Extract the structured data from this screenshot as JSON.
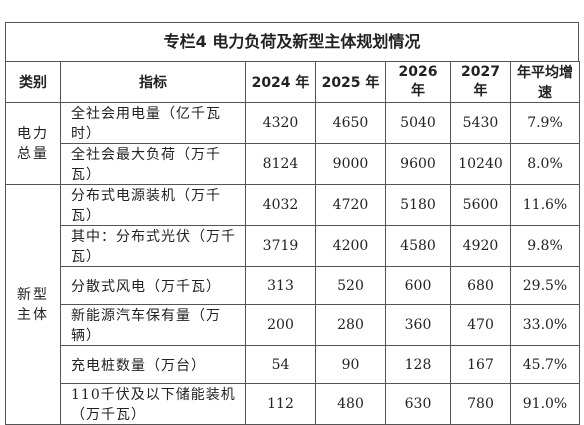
{
  "title": "专栏4  电力负荷及新型主体规划情况",
  "table": {
    "header": [
      "类别",
      "指标",
      "2024 年",
      "2025 年",
      "2026 年",
      "2027 年",
      "年平均增速"
    ],
    "groups": [
      {
        "category": "电力总量",
        "rows": [
          [
            "全社会用电量（亿千瓦时）",
            "4320",
            "4650",
            "5040",
            "5430",
            "7.9%"
          ],
          [
            "全社会最大负荷（万千瓦）",
            "8124",
            "9000",
            "9600",
            "10240",
            "8.0%"
          ]
        ]
      },
      {
        "category": "新型主体",
        "rows": [
          [
            "分布式电源装机（万千瓦）",
            "4032",
            "4720",
            "5180",
            "5600",
            "11.6%"
          ],
          [
            "其中：分布式光伏（万千瓦）",
            "3719",
            "4200",
            "4580",
            "4920",
            "9.8%"
          ],
          [
            "分散式风电（万千瓦）",
            "313",
            "520",
            "600",
            "680",
            "29.5%"
          ],
          [
            "新能源汽车保有量（万辆）",
            "200",
            "280",
            "360",
            "470",
            "33.0%"
          ],
          [
            "充电桩数量（万台）",
            "54",
            "90",
            "128",
            "167",
            "45.7%"
          ],
          [
            "110千伏及以下储能装机（万千瓦）",
            "112",
            "480",
            "630",
            "780",
            "91.0%"
          ]
        ]
      }
    ]
  }
}
